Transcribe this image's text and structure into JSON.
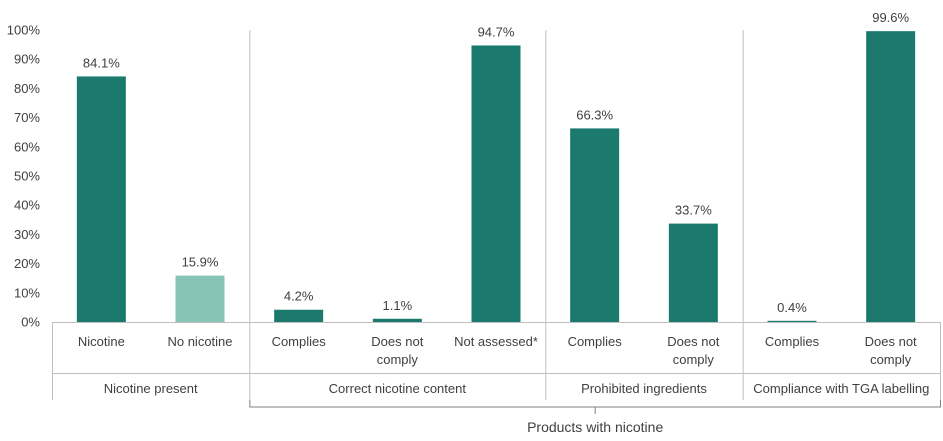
{
  "chart_data": {
    "type": "bar",
    "title": "",
    "xlabel": "",
    "ylabel": "",
    "ylim": [
      0,
      100
    ],
    "y_ticks": [
      "0%",
      "10%",
      "20%",
      "30%",
      "40%",
      "50%",
      "60%",
      "70%",
      "80%",
      "90%",
      "100%"
    ],
    "grid": false,
    "legend": "none",
    "categories": [
      [
        "Nicotine"
      ],
      [
        "No nicotine"
      ],
      [
        "Complies"
      ],
      [
        "Does not",
        "comply"
      ],
      [
        "Not assessed*"
      ],
      [
        "Complies"
      ],
      [
        "Does not",
        "comply"
      ],
      [
        "Complies"
      ],
      [
        "Does not",
        "comply"
      ]
    ],
    "values": [
      84.1,
      15.9,
      4.2,
      1.1,
      94.7,
      66.3,
      33.7,
      0.4,
      99.6
    ],
    "data_labels": [
      "84.1%",
      "15.9%",
      "4.2%",
      "1.1%",
      "94.7%",
      "66.3%",
      "33.7%",
      "0.4%",
      "99.6%"
    ],
    "bar_colors": [
      "#1b7a6d",
      "#87c4b6",
      "#1b7a6d",
      "#1b7a6d",
      "#1b7a6d",
      "#1b7a6d",
      "#1b7a6d",
      "#1b7a6d",
      "#1b7a6d"
    ],
    "groups": [
      {
        "label": "Nicotine present",
        "count": 2
      },
      {
        "label": "Correct nicotine content",
        "count": 3
      },
      {
        "label": "Prohibited ingredients",
        "count": 2
      },
      {
        "label": "Compliance with TGA labelling",
        "count": 2
      }
    ],
    "super_group": {
      "label": "Products with nicotine",
      "start": 2,
      "end": 8
    }
  },
  "colors": {
    "primary": "#1b7a6d",
    "secondary": "#87c4b6",
    "axis": "#bfbfbf",
    "text": "#404040"
  }
}
